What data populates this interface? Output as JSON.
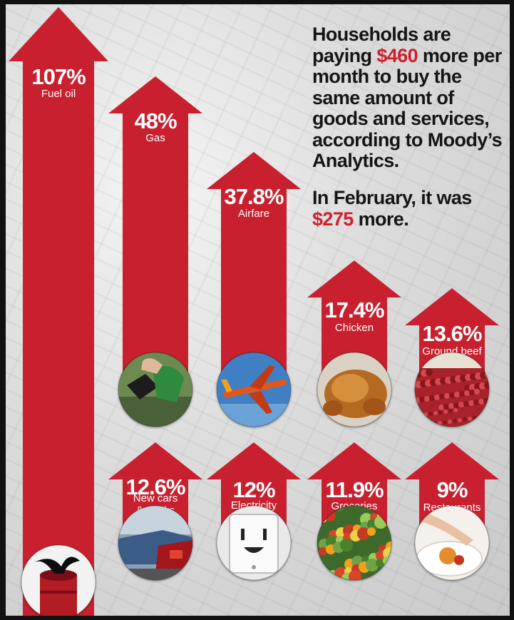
{
  "headline": {
    "before": "Households are paying ",
    "amount": "$460",
    "after": " more per month to buy the same amount of goods and services, according to Moody’s Analytics."
  },
  "february": {
    "before": "In February, it was ",
    "amount": "$275",
    "after": " more."
  },
  "colors": {
    "arrow": "#c8202e",
    "highlight": "#cf1f2e",
    "text": "#151515"
  },
  "chart_data": {
    "type": "bar",
    "unit": "%",
    "categories": [
      "Fuel oil",
      "Gas",
      "Airfare",
      "Chicken",
      "Ground beef",
      "New cars & trucks",
      "Electricity",
      "Groceries",
      "Restaurants"
    ],
    "values": [
      107,
      48,
      37.8,
      17.4,
      13.6,
      12.6,
      12,
      11.9,
      9
    ],
    "value_labels": [
      "107%",
      "48%",
      "37.8%",
      "17.4%",
      "13.6%",
      "12.6%",
      "12%",
      "11.9%",
      "9%"
    ],
    "icons": [
      "oil-barrel-icon",
      "gas-pump-icon",
      "airplane-icon",
      "roast-chicken-icon",
      "ground-beef-icon",
      "car-icon",
      "electrical-outlet-icon",
      "produce-icon",
      "plated-dish-icon"
    ]
  }
}
